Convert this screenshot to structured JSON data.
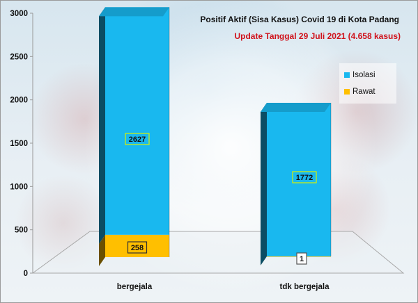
{
  "chart_data": {
    "type": "bar",
    "stacked": true,
    "title": "Positif Aktif  (Sisa Kasus) Covid 19 di Kota Padang",
    "subtitle": "Update Tanggal 29 Juli 2021 (4.658 kasus)",
    "categories": [
      "bergejala",
      "tdk bergejala"
    ],
    "series": [
      {
        "name": "Rawat",
        "values": [
          258,
          1
        ],
        "color": "#ffbf00"
      },
      {
        "name": "Isolasi",
        "values": [
          2627,
          1772
        ],
        "color": "#19b8ef"
      }
    ],
    "ylim": [
      0,
      3000
    ],
    "yticks": [
      "0",
      "500",
      "1000",
      "1500",
      "2000",
      "2500",
      "3000"
    ],
    "legend_position": "right",
    "grid": false
  }
}
